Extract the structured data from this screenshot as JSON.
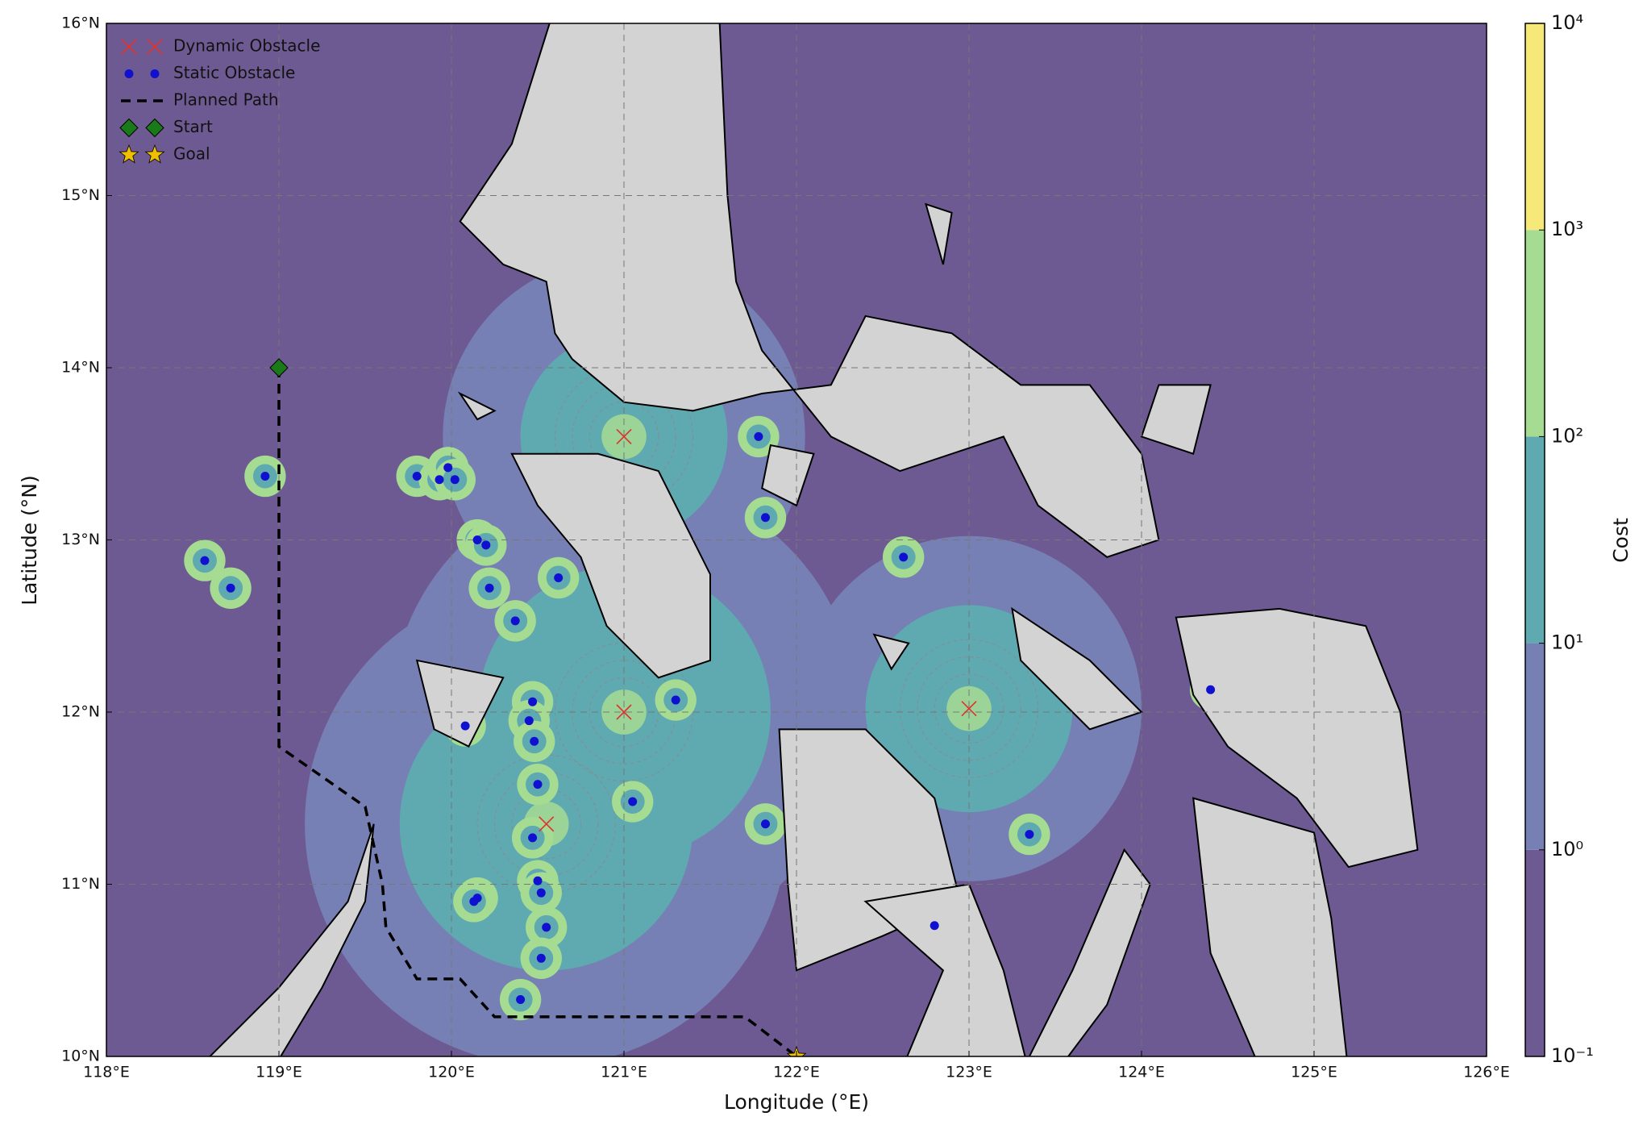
{
  "chart_data": {
    "type": "map",
    "xlabel": "Longitude (°E)",
    "ylabel": "Latitude (°N)",
    "xlim": [
      118,
      126
    ],
    "ylim": [
      10,
      16
    ],
    "xticks": [
      {
        "value": 118,
        "label": "118°E"
      },
      {
        "value": 119,
        "label": "119°E"
      },
      {
        "value": 120,
        "label": "120°E"
      },
      {
        "value": 121,
        "label": "121°E"
      },
      {
        "value": 122,
        "label": "122°E"
      },
      {
        "value": 123,
        "label": "123°E"
      },
      {
        "value": 124,
        "label": "124°E"
      },
      {
        "value": 125,
        "label": "125°E"
      },
      {
        "value": 126,
        "label": "126°E"
      }
    ],
    "yticks": [
      {
        "value": 10,
        "label": "10°N"
      },
      {
        "value": 11,
        "label": "11°N"
      },
      {
        "value": 12,
        "label": "12°N"
      },
      {
        "value": 13,
        "label": "13°N"
      },
      {
        "value": 14,
        "label": "14°N"
      },
      {
        "value": 15,
        "label": "15°N"
      },
      {
        "value": 16,
        "label": "16°N"
      }
    ],
    "grid": true,
    "legend": "upper left",
    "series": [
      {
        "name": "Dynamic Obstacle",
        "color": "#e03030",
        "marker": "x",
        "x": [
          121.0,
          121.0,
          120.55,
          123.0
        ],
        "y": [
          13.6,
          12.0,
          11.35,
          12.02
        ]
      },
      {
        "name": "Static Obstacle",
        "color": "#1010d0",
        "marker": "dot",
        "x": [
          118.92,
          118.57,
          118.72,
          119.8,
          119.93,
          119.98,
          120.02,
          120.15,
          120.2,
          120.22,
          120.37,
          120.62,
          120.47,
          120.45,
          120.08,
          120.48,
          120.5,
          121.05,
          121.3,
          121.78,
          121.82,
          122.62,
          121.82,
          120.47,
          120.5,
          120.52,
          120.15,
          120.13,
          120.55,
          120.52,
          120.4,
          122.8,
          123.35,
          124.4
        ],
        "y": [
          13.37,
          12.88,
          12.72,
          13.37,
          13.35,
          13.42,
          13.35,
          13.0,
          12.97,
          12.72,
          12.53,
          12.78,
          12.06,
          11.95,
          11.92,
          11.83,
          11.58,
          11.48,
          12.07,
          13.6,
          13.13,
          12.9,
          11.35,
          11.27,
          11.02,
          10.95,
          10.92,
          10.9,
          10.75,
          10.57,
          10.33,
          10.76,
          11.29,
          12.13
        ]
      },
      {
        "name": "Planned Path",
        "color": "#000000",
        "marker": "line",
        "x": [
          119.0,
          119.0,
          119.5,
          119.6,
          119.62,
          119.8,
          120.05,
          120.25,
          121.7,
          122.0
        ],
        "y": [
          14.0,
          11.8,
          11.45,
          11.0,
          10.75,
          10.45,
          10.45,
          10.23,
          10.23,
          10.0
        ]
      },
      {
        "name": "Start",
        "color": "#1a7a1a",
        "marker": "diamond",
        "x": [
          119.0
        ],
        "y": [
          14.0
        ]
      },
      {
        "name": "Goal",
        "color": "#f0c000",
        "marker": "star",
        "x": [
          122.0
        ],
        "y": [
          10.0
        ]
      }
    ],
    "colorbar": {
      "label": "Cost",
      "log": true,
      "lim": [
        0.1,
        10000
      ],
      "ticks": [
        {
          "value": 0.1,
          "label": "10⁻¹"
        },
        {
          "value": 1,
          "label": "10⁰"
        },
        {
          "value": 10,
          "label": "10¹"
        },
        {
          "value": 100,
          "label": "10²"
        },
        {
          "value": 1000,
          "label": "10³"
        },
        {
          "value": 10000,
          "label": "10⁴"
        }
      ],
      "colors": [
        "#6e5a92",
        "#7680b4",
        "#5fa9b1",
        "#a6dc92",
        "#f6e97a"
      ]
    }
  }
}
